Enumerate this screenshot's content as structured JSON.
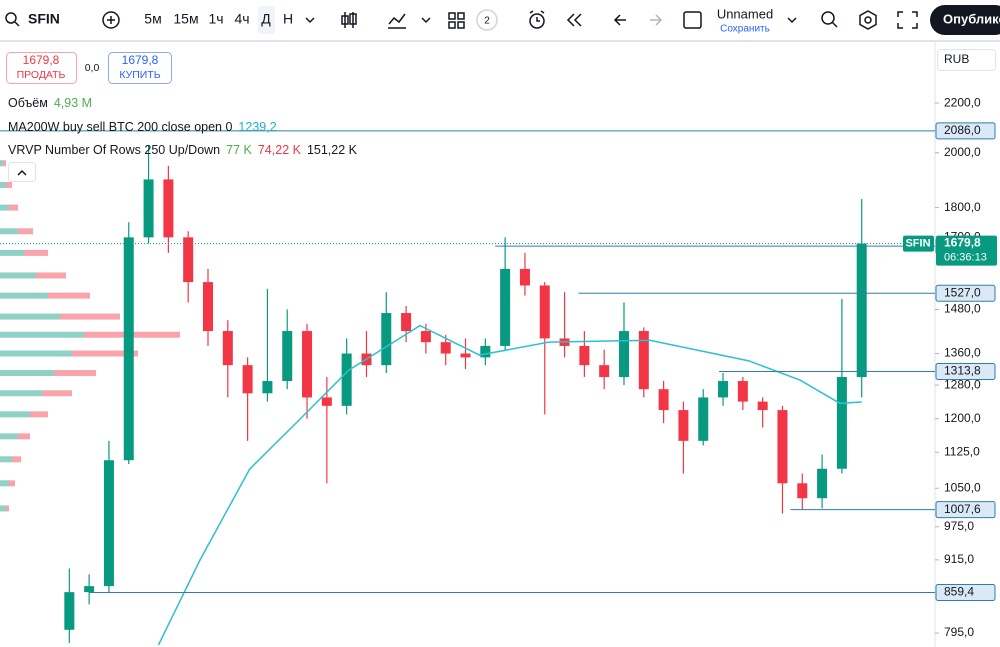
{
  "toolbar": {
    "symbol": "SFIN",
    "intervals": [
      "5м",
      "15м",
      "1ч",
      "4ч",
      "Д",
      "Н"
    ],
    "layout_count": "2",
    "layout_name": "Unnamed",
    "save": "Сохранить",
    "publish": "Опублико"
  },
  "order_panel": {
    "sell_price": "1679,8",
    "sell": "ПРОДАТЬ",
    "spread": "0,0",
    "buy_price": "1679,8",
    "buy": "КУПИТЬ"
  },
  "legend": [
    {
      "name": "Объём",
      "values": [
        "4,93 M"
      ],
      "colors": [
        "#4caf50"
      ]
    },
    {
      "name": "MA200W buy sell BTC 200 close open 0",
      "values": [
        "1239,2"
      ],
      "colors": [
        "#22aebf"
      ]
    },
    {
      "name": "VRVP Number Of Rows 250 Up/Down",
      "values": [
        "77 K",
        "74,22 K",
        "151,22 K"
      ],
      "colors": [
        "#4caf50",
        "#f23645",
        "#131722"
      ]
    }
  ],
  "currency": "RUB",
  "chart_data": {
    "type": "candlestick",
    "log_scale": true,
    "grid": false,
    "xlim": [
      -3.5,
      43.7
    ],
    "ylim": [
      774,
      2474
    ],
    "yticks": [
      {
        "value": 795,
        "label": "795,0"
      },
      {
        "value": 915,
        "label": "915,0"
      },
      {
        "value": 975,
        "label": "975,0"
      },
      {
        "value": 1050,
        "label": "1050,0"
      },
      {
        "value": 1125,
        "label": "1125,0"
      },
      {
        "value": 1200,
        "label": "1200,0"
      },
      {
        "value": 1280,
        "label": "1280,0"
      },
      {
        "value": 1360,
        "label": "1360,0"
      },
      {
        "value": 1480,
        "label": "1480,0"
      },
      {
        "value": 1700,
        "label": "1700,0"
      },
      {
        "value": 1800,
        "label": "1800,0"
      },
      {
        "value": 2000,
        "label": "2000,0"
      },
      {
        "value": 2200,
        "label": "2200,0"
      }
    ],
    "up_color": "#089981",
    "down_color": "#f23645",
    "candles": {
      "open": [
        800,
        860,
        870,
        1108,
        1700,
        1900,
        1700,
        1560,
        1420,
        1330,
        1260,
        1290,
        1420,
        1250,
        1230,
        1360,
        1330,
        1470,
        1420,
        1390,
        1360,
        1350,
        1380,
        1600,
        1550,
        1400,
        1380,
        1330,
        1300,
        1420,
        1270,
        1220,
        1150,
        1250,
        1290,
        1240,
        1220,
        1060,
        1030,
        1090,
        1300
      ],
      "high": [
        900,
        890,
        1150,
        1750,
        2030,
        1950,
        1720,
        1600,
        1450,
        1350,
        1540,
        1480,
        1440,
        1300,
        1400,
        1420,
        1530,
        1490,
        1440,
        1410,
        1400,
        1400,
        1700,
        1650,
        1560,
        1530,
        1420,
        1370,
        1500,
        1430,
        1290,
        1240,
        1270,
        1310,
        1300,
        1250,
        1230,
        1080,
        1120,
        1510,
        1830
      ],
      "low": [
        780,
        840,
        860,
        1100,
        1680,
        1650,
        1500,
        1380,
        1250,
        1150,
        1240,
        1270,
        1200,
        1060,
        1210,
        1300,
        1310,
        1390,
        1360,
        1330,
        1320,
        1330,
        1370,
        1520,
        1210,
        1350,
        1300,
        1270,
        1280,
        1250,
        1190,
        1080,
        1140,
        1230,
        1220,
        1180,
        1000,
        1007.6,
        1010,
        1080,
        1250
      ],
      "close": [
        860,
        870,
        1108,
        1700,
        1900,
        1700,
        1560,
        1420,
        1330,
        1260,
        1290,
        1420,
        1250,
        1230,
        1360,
        1330,
        1470,
        1420,
        1390,
        1360,
        1350,
        1380,
        1600,
        1550,
        1400,
        1380,
        1330,
        1300,
        1420,
        1270,
        1220,
        1150,
        1250,
        1290,
        1240,
        1220,
        1060,
        1030,
        1090,
        1300,
        1679.8
      ]
    },
    "ma": {
      "color": "#2ebfd0",
      "x": [
        4.5,
        6.6,
        9.1,
        11.6,
        14.1,
        17.7,
        20.7,
        24.2,
        29.3,
        34.3,
        36.9,
        38.9,
        40
      ],
      "values": [
        777,
        915,
        1089,
        1197,
        1317,
        1435,
        1356,
        1390,
        1395,
        1341,
        1292,
        1236,
        1239.2
      ]
    },
    "level_color": "#2f7fa8",
    "levels": [
      {
        "value": 2086,
        "label": "2086,0",
        "start": -3.5
      },
      {
        "value": 1671.6,
        "label": "1671,6",
        "start": 21.5
      },
      {
        "value": 1527,
        "label": "1527,0",
        "start": 25.7
      },
      {
        "value": 1313.8,
        "label": "1313,8",
        "start": 32.8
      },
      {
        "value": 1007.6,
        "label": "1007,6",
        "start": 36.4
      },
      {
        "value": 859.4,
        "label": "859,4",
        "start": 1
      }
    ],
    "last_price": {
      "symbol": "SFIN",
      "value": 1679.8,
      "label": "1679,8",
      "countdown": "06:36:13"
    },
    "profile": {
      "xlim": [
        0,
        30
      ],
      "prices": [
        1960,
        1880,
        1800,
        1720,
        1650,
        1580,
        1520,
        1460,
        1410,
        1360,
        1310,
        1260,
        1210,
        1160,
        1110,
        1060,
        1010
      ],
      "up": [
        0.5,
        1,
        1.5,
        3,
        4,
        6,
        8,
        10,
        14,
        12,
        9,
        7,
        5,
        3,
        2,
        1.5,
        1
      ],
      "down": [
        0.5,
        1,
        1.5,
        2.5,
        4,
        5,
        7,
        10,
        16,
        11,
        7,
        5,
        3,
        2,
        1.5,
        1,
        0.5
      ]
    }
  }
}
